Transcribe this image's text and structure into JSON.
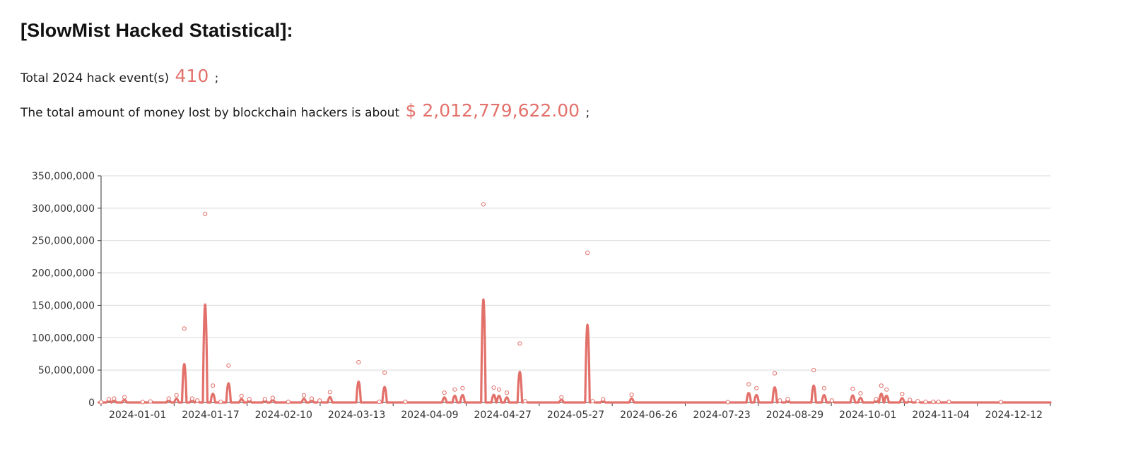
{
  "header": {
    "title": "[SlowMist Hacked Statistical]:"
  },
  "stats": {
    "events_prefix": "Total 2024 hack event(s)",
    "events_count": "410",
    "events_suffix": ";",
    "money_prefix": "The total amount of money lost by blockchain hackers is about",
    "money_value": "$ 2,012,779,622.00",
    "money_suffix": ";"
  },
  "colors": {
    "series": "#e3716b",
    "grid": "#d9d9d9",
    "axis": "#333333"
  },
  "chart_data": {
    "type": "line",
    "title": "",
    "xlabel": "",
    "ylabel": "",
    "ylim": [
      0,
      350000000
    ],
    "y_ticks": [
      0,
      50000000,
      100000000,
      150000000,
      200000000,
      250000000,
      300000000,
      350000000
    ],
    "y_tick_labels": [
      "0",
      "50,000,000",
      "100,000,000",
      "150,000,000",
      "200,000,000",
      "250,000,000",
      "300,000,000",
      "350,000,000"
    ],
    "x_tick_labels": [
      "2024-01-01",
      "2024-01-17",
      "2024-02-10",
      "2024-03-13",
      "2024-04-09",
      "2024-04-27",
      "2024-05-27",
      "2024-06-26",
      "2024-07-23",
      "2024-08-29",
      "2024-10-01",
      "2024-11-04",
      "2024-12-12"
    ],
    "grid": true,
    "legend": "none",
    "series": [
      {
        "x": [
          "2024-01-01",
          "2024-01-04",
          "2024-01-06",
          "2024-01-10",
          "2024-01-17",
          "2024-01-20",
          "2024-01-27",
          "2024-01-30",
          "2024-02-02",
          "2024-02-05",
          "2024-02-07",
          "2024-02-10",
          "2024-02-13",
          "2024-02-16",
          "2024-02-19",
          "2024-02-24",
          "2024-02-27",
          "2024-03-04",
          "2024-03-07",
          "2024-03-13",
          "2024-03-19",
          "2024-03-22",
          "2024-03-25",
          "2024-03-29",
          "2024-04-09",
          "2024-04-17",
          "2024-04-19",
          "2024-04-27",
          "2024-05-12",
          "2024-05-16",
          "2024-05-19",
          "2024-05-27",
          "2024-05-31",
          "2024-06-02",
          "2024-06-05",
          "2024-06-10",
          "2024-06-12",
          "2024-06-26",
          "2024-07-06",
          "2024-07-08",
          "2024-07-12",
          "2024-07-23",
          "2024-08-29",
          "2024-09-06",
          "2024-09-09",
          "2024-09-16",
          "2024-09-18",
          "2024-09-21",
          "2024-10-01",
          "2024-10-05",
          "2024-10-08",
          "2024-10-16",
          "2024-10-19",
          "2024-10-25",
          "2024-10-27",
          "2024-10-29",
          "2024-11-04",
          "2024-11-07",
          "2024-11-10",
          "2024-11-13",
          "2024-11-16",
          "2024-11-18",
          "2024-11-22",
          "2024-12-12"
        ],
        "values": [
          500000,
          5000000,
          6000000,
          8000000,
          700000,
          1500000,
          6000000,
          11000000,
          114000000,
          6000000,
          3000000,
          291000000,
          26000000,
          1000000,
          57000000,
          10000000,
          5000000,
          5000000,
          7000000,
          1000000,
          11000000,
          6000000,
          3000000,
          16000000,
          62000000,
          1000000,
          46000000,
          1000000,
          15000000,
          20000000,
          22000000,
          306000000,
          23000000,
          20000000,
          15000000,
          91000000,
          2000000,
          8000000,
          231000000,
          2000000,
          5000000,
          12000000,
          500000,
          28000000,
          22000000,
          45000000,
          3000000,
          5000000,
          50000000,
          22000000,
          3000000,
          21000000,
          14000000,
          5000000,
          26000000,
          20000000,
          13000000,
          4000000,
          2000000,
          1000000,
          1000000,
          1000000,
          1000000,
          500000
        ]
      }
    ]
  }
}
